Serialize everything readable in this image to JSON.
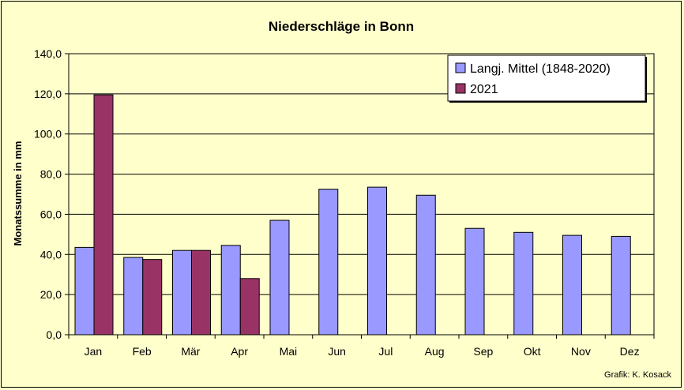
{
  "chart_data": {
    "type": "bar",
    "title": "Niederschläge in Bonn",
    "xlabel": "",
    "ylabel": "Monatssumme in mm",
    "ylim": [
      0,
      140
    ],
    "yticks": [
      "0,0",
      "20,0",
      "40,0",
      "60,0",
      "80,0",
      "100,0",
      "120,0",
      "140,0"
    ],
    "categories": [
      "Jan",
      "Feb",
      "Mär",
      "Apr",
      "Mai",
      "Jun",
      "Jul",
      "Aug",
      "Sep",
      "Okt",
      "Nov",
      "Dez"
    ],
    "series": [
      {
        "name": "Langj. Mittel (1848-2020)",
        "color": "#9999ff",
        "values": [
          43.5,
          38.5,
          42.0,
          44.5,
          57.0,
          72.5,
          73.5,
          69.5,
          53.0,
          51.0,
          49.5,
          49.0
        ]
      },
      {
        "name": "2021",
        "color": "#993366",
        "values": [
          119.5,
          37.5,
          42.0,
          28.0,
          null,
          null,
          null,
          null,
          null,
          null,
          null,
          null
        ]
      }
    ],
    "grid": true,
    "legend": "top-right",
    "plot_background": "#ffffcc"
  },
  "credit": "Grafik:  K. Kosack"
}
